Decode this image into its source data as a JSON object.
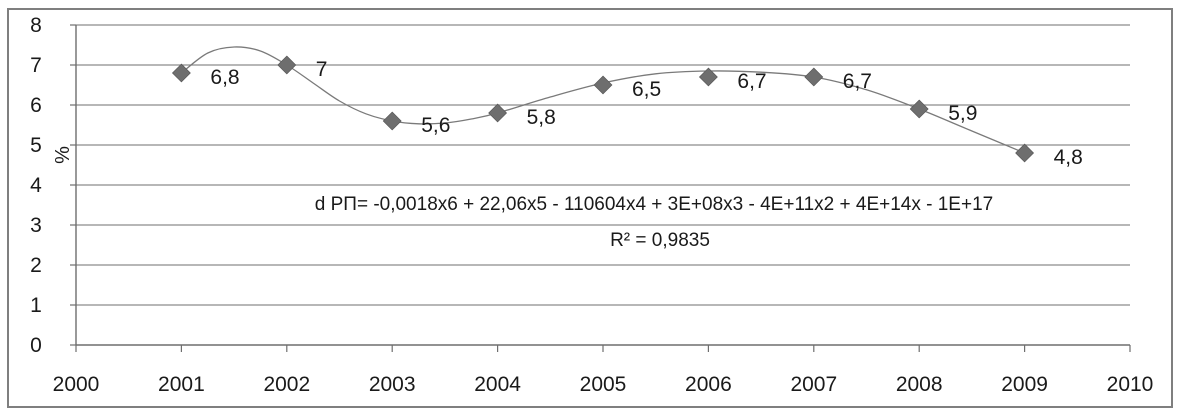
{
  "chart_data": {
    "type": "scatter",
    "x": [
      2001,
      2002,
      2003,
      2004,
      2005,
      2006,
      2007,
      2008,
      2009
    ],
    "series": [
      {
        "values": [
          6.8,
          7,
          5.6,
          5.8,
          6.5,
          6.7,
          6.7,
          5.9,
          4.8
        ],
        "data_labels": [
          "6,8",
          "7",
          "5,6",
          "5,8",
          "6,5",
          "6,7",
          "6,7",
          "5,9",
          "4,8"
        ]
      }
    ],
    "trendline": {
      "type": "polynomial",
      "order": 6,
      "equation": "d РП= -0,0018x6 + 22,06x5 - 110604x4 + 3E+08x3 - 4E+11x2 + 4E+14x - 1E+17",
      "r_squared": "R² = 0,9835",
      "curve_x": [
        2001,
        2001.25,
        2001.5,
        2001.75,
        2002,
        2002.25,
        2002.5,
        2002.75,
        2003,
        2003.25,
        2003.5,
        2003.75,
        2004,
        2004.5,
        2005,
        2005.5,
        2006,
        2006.5,
        2007,
        2007.5,
        2008,
        2008.5,
        2009
      ],
      "curve_y": [
        6.8,
        7.3,
        7.45,
        7.35,
        7.0,
        6.55,
        6.1,
        5.78,
        5.6,
        5.53,
        5.55,
        5.65,
        5.8,
        6.2,
        6.55,
        6.78,
        6.85,
        6.82,
        6.7,
        6.38,
        5.9,
        5.35,
        4.8
      ]
    },
    "xlabel": "",
    "ylabel": "%",
    "xlim": [
      2000,
      2010
    ],
    "ylim": [
      0,
      8
    ],
    "x_ticks": [
      2000,
      2001,
      2002,
      2003,
      2004,
      2005,
      2006,
      2007,
      2008,
      2009,
      2010
    ],
    "y_ticks": [
      0,
      1,
      2,
      3,
      4,
      5,
      6,
      7,
      8
    ],
    "grid": "horizontal",
    "legend": "none",
    "marker": "diamond",
    "colors": {
      "marker": "#6e6e6e",
      "trendline": "#7a7a7a",
      "grid": "#8c8c8c",
      "axis": "#6e6e6e",
      "frame": "#7f7f7f",
      "text": "#1a1a1a"
    }
  }
}
